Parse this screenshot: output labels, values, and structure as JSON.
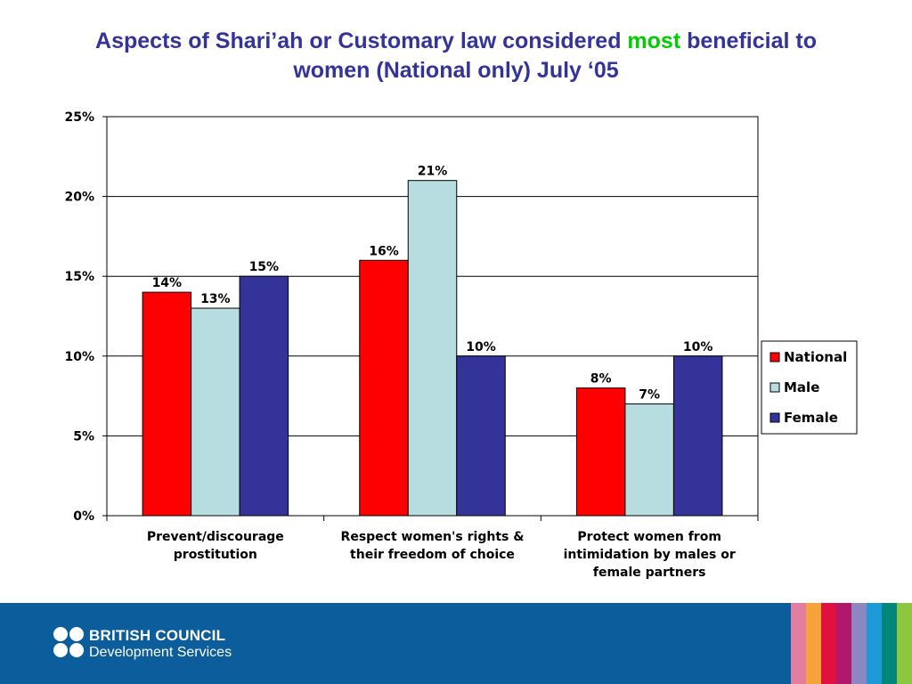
{
  "title": {
    "part1": "Aspects of Shari’ah or Customary law considered ",
    "highlight": "most",
    "part2": " beneficial to",
    "line2": "women  (National only) July ‘05"
  },
  "chart_data": {
    "type": "bar",
    "categories": [
      [
        "Prevent/discourage",
        "prostitution"
      ],
      [
        "Respect women's rights &",
        "their freedom of choice"
      ],
      [
        "Protect women from",
        "intimidation by males or",
        "female partners"
      ]
    ],
    "series": [
      {
        "name": "National",
        "color": "#ff0000",
        "values": [
          14,
          16,
          8
        ]
      },
      {
        "name": "Male",
        "color": "#b8dde0",
        "values": [
          13,
          21,
          7
        ]
      },
      {
        "name": "Female",
        "color": "#333399",
        "values": [
          15,
          10,
          10
        ]
      }
    ],
    "ylim": [
      0,
      25
    ],
    "yticks": [
      0,
      5,
      10,
      15,
      20,
      25
    ],
    "ytick_labels": [
      "0%",
      "5%",
      "10%",
      "15%",
      "20%",
      "25%"
    ],
    "value_suffix": "%",
    "grid": true,
    "legend_position": "right"
  },
  "footer": {
    "org_name": "BRITISH COUNCIL",
    "org_sub": "Development Services",
    "stripe_colors": [
      "#e37ea0",
      "#f5a33a",
      "#e0103f",
      "#b0196b",
      "#8d86c0",
      "#1b9ad6",
      "#00867b",
      "#8dc63f"
    ]
  }
}
